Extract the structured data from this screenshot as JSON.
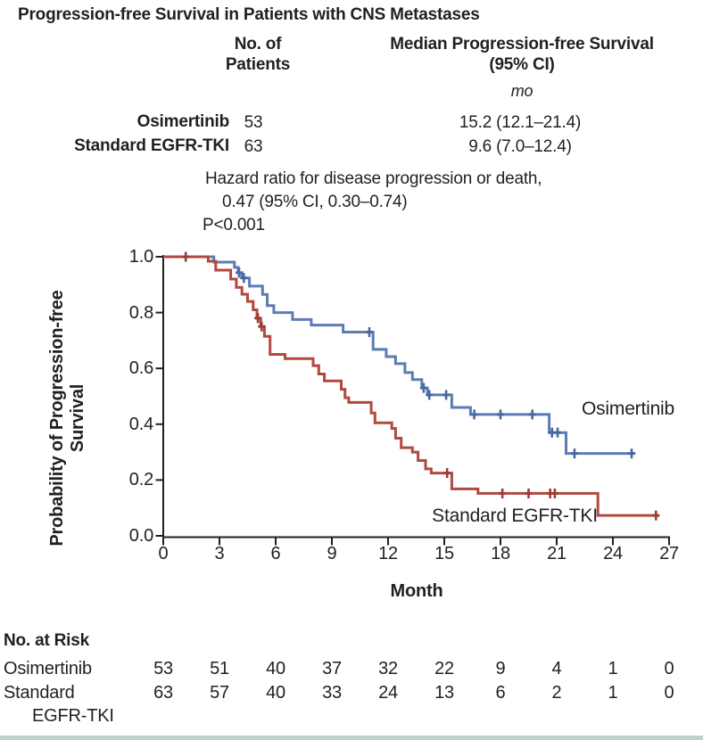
{
  "title": "Progression-free Survival in Patients with CNS Metastases",
  "summary": {
    "col_patients": "No. of\nPatients",
    "col_median": "Median Progression-free Survival\n(95% CI)",
    "unit": "mo",
    "rows": [
      {
        "drug": "Osimertinib",
        "n": "53",
        "median": "15.2 (12.1–21.4)"
      },
      {
        "drug": "Standard EGFR-TKI",
        "n": "63",
        "median": "9.6 (7.0–12.4)"
      }
    ],
    "hazard_line1": "Hazard ratio for disease progression or death,",
    "hazard_line2": "0.47 (95% CI, 0.30–0.74)",
    "p_value": "P<0.001"
  },
  "chart_data": {
    "type": "line",
    "subtype": "kaplan-meier-step",
    "xlabel": "Month",
    "ylabel": "Probability of Progression-free Survival",
    "ylabel_lines": [
      "Probability of Progression-free",
      "Survival"
    ],
    "xlim": [
      0,
      27
    ],
    "ylim": [
      0.0,
      1.0
    ],
    "x_ticks": [
      0,
      3,
      6,
      9,
      12,
      15,
      18,
      21,
      24,
      27
    ],
    "y_ticks": [
      "1.0",
      "0.8",
      "0.6",
      "0.4",
      "0.2",
      "0.0"
    ],
    "grid": "off",
    "legend": "curve-end-labels",
    "axis_color": "#231f20",
    "series": [
      {
        "name": "Osimertinib",
        "color": "#5d7cb5",
        "censor_color": "#49669f",
        "median_months": 15.2,
        "steps": [
          [
            0,
            1.0
          ],
          [
            2.7,
            0.981
          ],
          [
            3.8,
            0.962
          ],
          [
            4.0,
            0.943
          ],
          [
            4.2,
            0.924
          ],
          [
            4.6,
            0.895
          ],
          [
            5.3,
            0.865
          ],
          [
            5.55,
            0.825
          ],
          [
            5.9,
            0.8
          ],
          [
            6.9,
            0.775
          ],
          [
            7.9,
            0.755
          ],
          [
            9.6,
            0.73
          ],
          [
            11.2,
            0.668
          ],
          [
            11.9,
            0.642
          ],
          [
            12.4,
            0.617
          ],
          [
            12.9,
            0.585
          ],
          [
            13.3,
            0.56
          ],
          [
            13.8,
            0.53
          ],
          [
            14.1,
            0.505
          ],
          [
            15.4,
            0.46
          ],
          [
            16.4,
            0.435
          ],
          [
            20.6,
            0.37
          ],
          [
            21.5,
            0.295
          ]
        ],
        "end_month": 25.2,
        "censors": [
          [
            4.05,
            0.943
          ],
          [
            4.3,
            0.924
          ],
          [
            11.0,
            0.73
          ],
          [
            13.9,
            0.53
          ],
          [
            14.2,
            0.505
          ],
          [
            15.1,
            0.505
          ],
          [
            16.6,
            0.435
          ],
          [
            18.0,
            0.435
          ],
          [
            19.7,
            0.435
          ],
          [
            20.75,
            0.37
          ],
          [
            21.05,
            0.37
          ],
          [
            21.95,
            0.295
          ],
          [
            25.0,
            0.295
          ]
        ]
      },
      {
        "name": "Standard EGFR-TKI",
        "color": "#b04a40",
        "censor_color": "#9d3a32",
        "median_months": 9.6,
        "steps": [
          [
            0,
            1.0
          ],
          [
            2.4,
            0.984
          ],
          [
            2.8,
            0.952
          ],
          [
            3.6,
            0.92
          ],
          [
            3.9,
            0.89
          ],
          [
            4.2,
            0.866
          ],
          [
            4.5,
            0.84
          ],
          [
            4.8,
            0.81
          ],
          [
            5.0,
            0.78
          ],
          [
            5.2,
            0.75
          ],
          [
            5.4,
            0.715
          ],
          [
            5.7,
            0.65
          ],
          [
            6.5,
            0.635
          ],
          [
            8.0,
            0.61
          ],
          [
            8.3,
            0.58
          ],
          [
            8.6,
            0.555
          ],
          [
            9.5,
            0.525
          ],
          [
            9.7,
            0.495
          ],
          [
            9.9,
            0.478
          ],
          [
            11.1,
            0.44
          ],
          [
            11.3,
            0.405
          ],
          [
            12.2,
            0.385
          ],
          [
            12.4,
            0.35
          ],
          [
            12.7,
            0.316
          ],
          [
            13.3,
            0.3
          ],
          [
            13.6,
            0.27
          ],
          [
            14.0,
            0.24
          ],
          [
            14.3,
            0.225
          ],
          [
            15.4,
            0.168
          ],
          [
            16.8,
            0.152
          ],
          [
            23.2,
            0.073
          ]
        ],
        "end_month": 26.45,
        "censors": [
          [
            1.2,
            1.0
          ],
          [
            5.05,
            0.78
          ],
          [
            5.25,
            0.75
          ],
          [
            15.15,
            0.225
          ],
          [
            18.1,
            0.152
          ],
          [
            19.5,
            0.152
          ],
          [
            20.65,
            0.152
          ],
          [
            20.9,
            0.152
          ],
          [
            26.3,
            0.073
          ]
        ]
      }
    ]
  },
  "risk_table": {
    "header": "No. at Risk",
    "months": [
      0,
      3,
      6,
      9,
      12,
      15,
      18,
      21,
      24,
      27
    ],
    "rows": [
      {
        "label": "Osimertinib",
        "label_line2": "",
        "values": [
          "53",
          "51",
          "40",
          "37",
          "32",
          "22",
          "9",
          "4",
          "1",
          "0"
        ]
      },
      {
        "label": "Standard",
        "label_line2": "EGFR-TKI",
        "values": [
          "63",
          "57",
          "40",
          "33",
          "24",
          "13",
          "6",
          "2",
          "1",
          "0"
        ]
      }
    ]
  }
}
